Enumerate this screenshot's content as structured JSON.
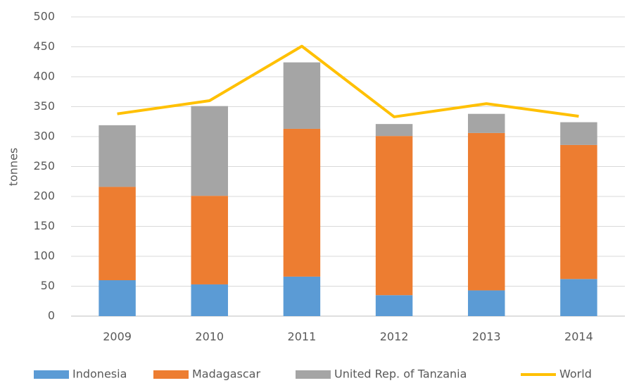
{
  "chart_data": {
    "type": "bar",
    "stacked": true,
    "y_label": "tonnes",
    "categories": [
      "2009",
      "2010",
      "2011",
      "2012",
      "2013",
      "2014"
    ],
    "series": [
      {
        "name": "Indonesia",
        "color": "#5b9bd5",
        "values": [
          60,
          53,
          66,
          35,
          43,
          62
        ]
      },
      {
        "name": "Madagascar",
        "color": "#ed7d31",
        "values": [
          156,
          148,
          247,
          266,
          263,
          224
        ]
      },
      {
        "name": "United Rep. of Tanzania",
        "color": "#a5a5a5",
        "values": [
          103,
          150,
          111,
          20,
          32,
          38
        ]
      },
      {
        "name": "World",
        "type": "line",
        "color": "#ffc000",
        "values": [
          338,
          360,
          451,
          333,
          355,
          334
        ]
      }
    ],
    "ylim": [
      0,
      500
    ],
    "yticks": [
      0,
      50,
      100,
      150,
      200,
      250,
      300,
      350,
      400,
      450,
      500
    ],
    "grid": true,
    "legend": "bottom"
  }
}
